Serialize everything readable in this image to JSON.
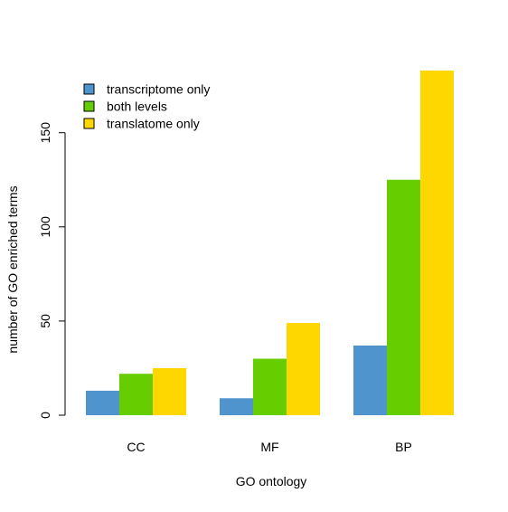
{
  "chart_data": {
    "type": "bar",
    "title": "",
    "xlabel": "GO ontology",
    "ylabel": "number of GO enriched terms",
    "categories": [
      "CC",
      "MF",
      "BP"
    ],
    "series": [
      {
        "name": "transcriptome only",
        "color": "#4f94cd",
        "values": [
          13,
          9,
          37
        ]
      },
      {
        "name": "both levels",
        "color": "#66cd00",
        "values": [
          22,
          30,
          125
        ]
      },
      {
        "name": "translatome only",
        "color": "#ffd700",
        "values": [
          25,
          49,
          183
        ]
      }
    ],
    "yticks": [
      0,
      50,
      100,
      150
    ],
    "ylim": [
      0,
      183
    ],
    "grid": false,
    "legend_position": "top-left"
  }
}
